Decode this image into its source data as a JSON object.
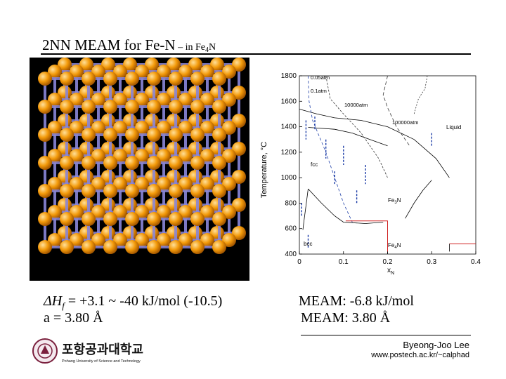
{
  "slide": {
    "title_main": "2NN MEAM for Fe-N",
    "title_dash": " – ",
    "title_in": "in Fe",
    "title_sub": "4",
    "title_end": "N"
  },
  "phase_diagram": {
    "type": "line",
    "ylabel": "Temperature, °C",
    "xlabel": "x",
    "xlabel_sub": "N",
    "xlim": [
      0,
      0.4
    ],
    "ylim": [
      400,
      1800
    ],
    "x_ticks": [
      "0",
      "0.1",
      "0.2",
      "0.3",
      "0.4"
    ],
    "y_ticks": [
      "400",
      "600",
      "800",
      "1000",
      "1200",
      "1400",
      "1600",
      "1800"
    ],
    "labels": {
      "p005": "0.05atm",
      "p01": "0.1atm",
      "p10000": "10000atm",
      "p100000": "100000atm",
      "liquid": "Liquid",
      "fcc": "fcc",
      "bcc": "bcc",
      "fe3n": "Fe",
      "fe3n_sub": "3",
      "fe3n_end": "N",
      "fe4n": "Fe",
      "fe4n_sub": "4",
      "fe4n_end": "N"
    },
    "colors": {
      "phase_lines": "#1f3fa8",
      "red_boundary": "#d02020",
      "axes": "#000000"
    }
  },
  "bottom": {
    "left_line1_prefix": "ΔH",
    "left_line1_sub": "f",
    "left_line1_rest": " = +3.1 ~ -40 kJ/mol  (-10.5)",
    "left_line2": "a = 3.80 Å",
    "right_line1": "MEAM: -6.8 kJ/mol",
    "right_line2": "MEAM: 3.80 Å"
  },
  "footer": {
    "logo_korean": "포항공과대학교",
    "logo_english": "Pohang University of Science and Technology",
    "author": "Byeong-Joo Lee",
    "url": "www.postech.ac.kr/~calphad"
  },
  "colors": {
    "atom_orange": "#f39a0a",
    "bond_purple": "#8a86d8",
    "background": "#ffffff"
  }
}
